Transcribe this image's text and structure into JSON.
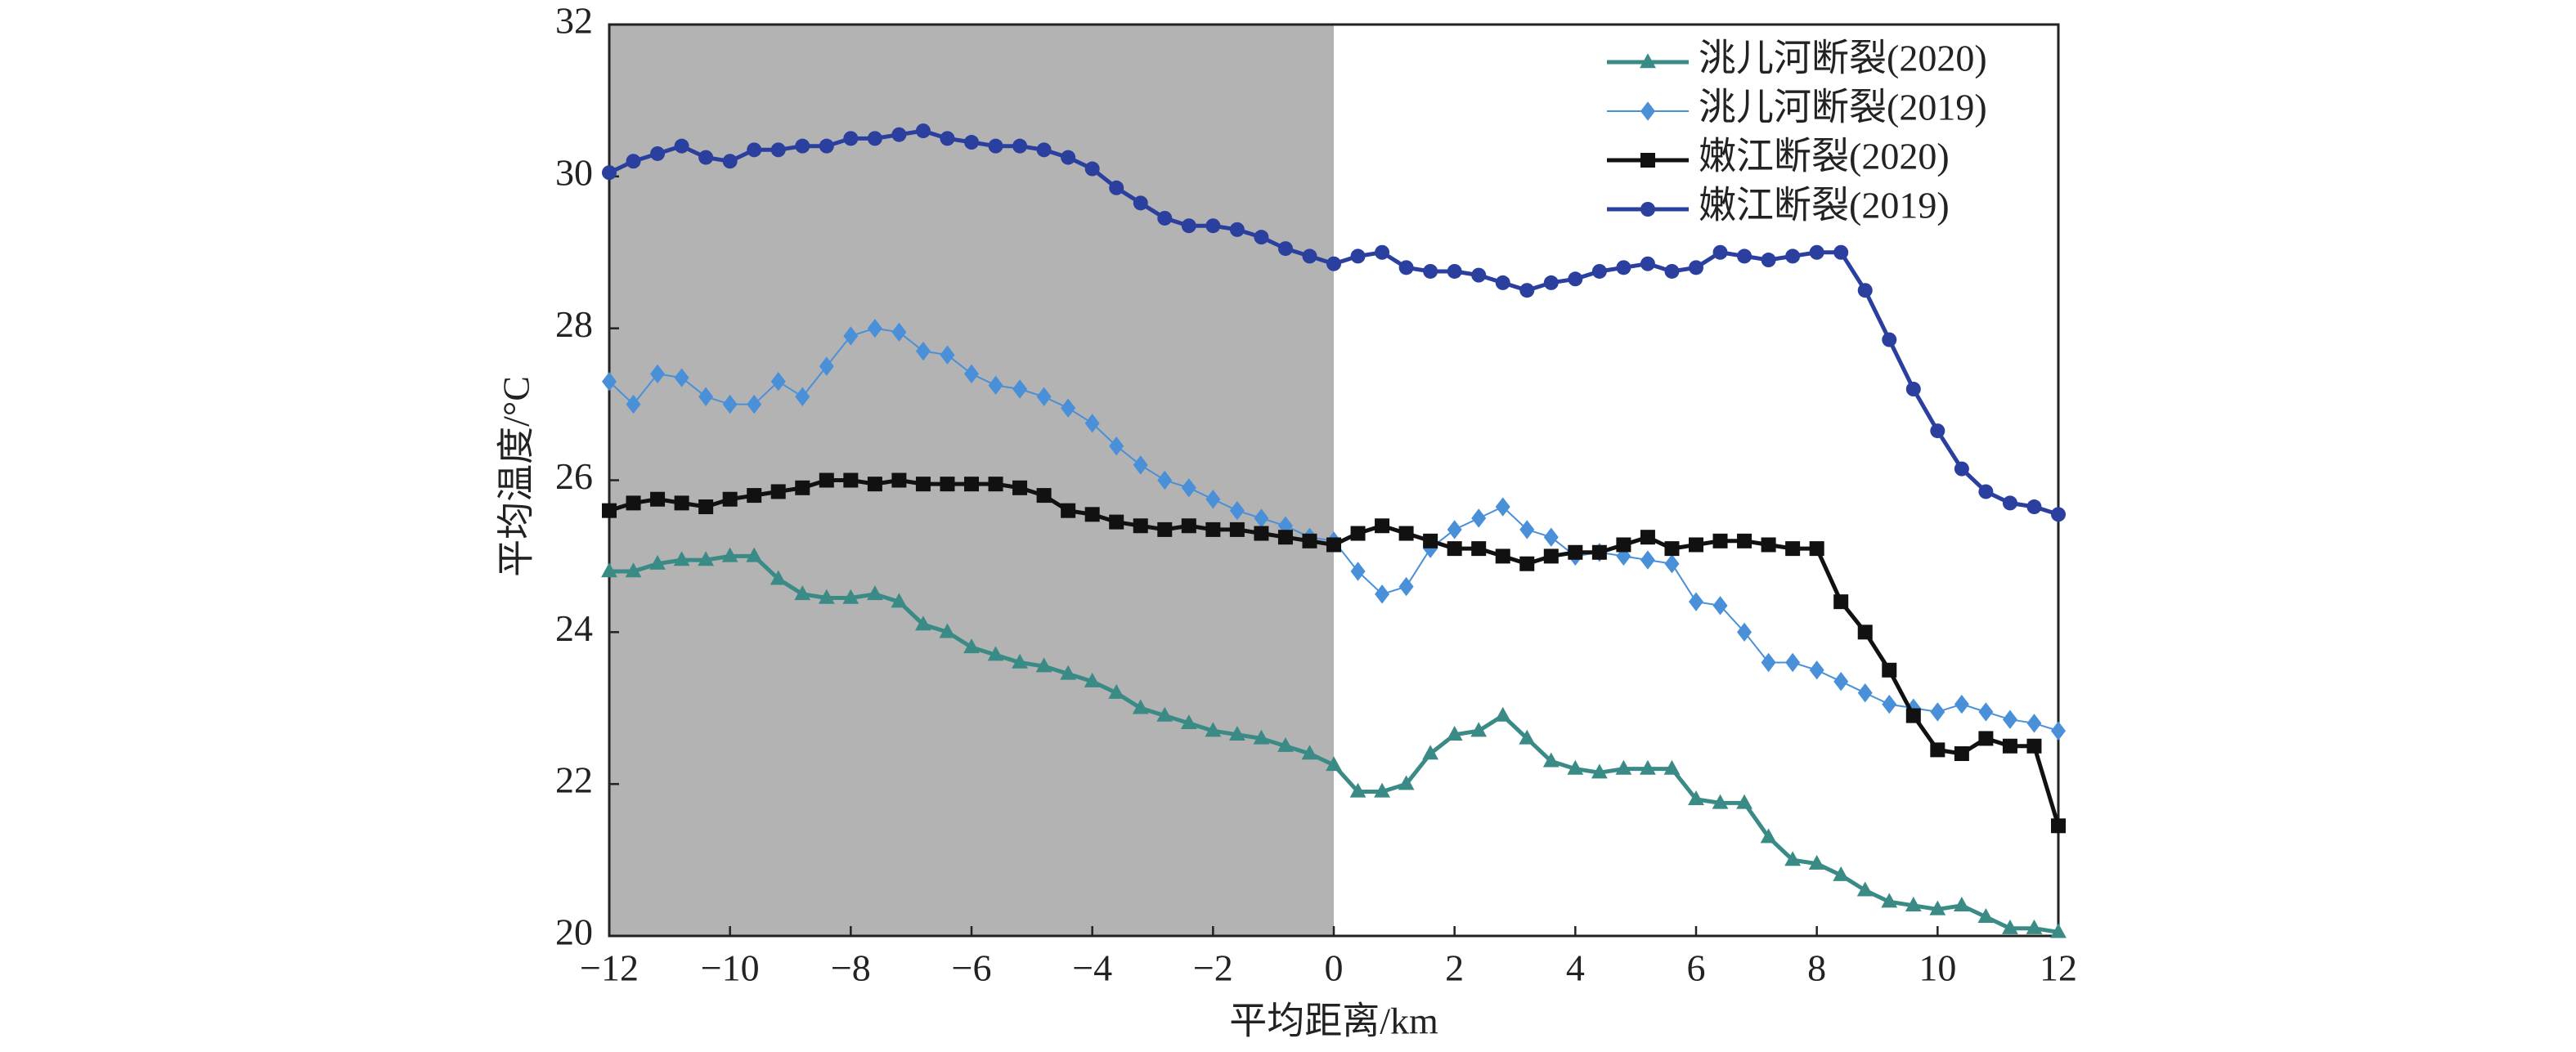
{
  "chart_data": {
    "type": "line",
    "x_label": "平均距离/km",
    "y_label": "平均温度/°C",
    "shaded_region": [
      -12,
      0
    ],
    "shade_color": "#b3b3b3",
    "xlim": [
      -12,
      12
    ],
    "ylim": [
      20,
      32
    ],
    "xticks": [
      {
        "value": -12,
        "label": "−12"
      },
      {
        "value": -10,
        "label": "−10"
      },
      {
        "value": -8,
        "label": "−8"
      },
      {
        "value": -6,
        "label": "−6"
      },
      {
        "value": -4,
        "label": "−4"
      },
      {
        "value": -2,
        "label": "−2"
      },
      0,
      2,
      4,
      6,
      8,
      10,
      12
    ],
    "yticks": [
      20,
      22,
      24,
      26,
      28,
      30,
      32
    ],
    "legend": "upper right",
    "x": [
      -12,
      -11.6,
      -11.2,
      -10.8,
      -10.4,
      -10,
      -9.6,
      -9.2,
      -8.8,
      -8.4,
      -8,
      -7.6,
      -7.2,
      -6.8,
      -6.4,
      -6,
      -5.6,
      -5.2,
      -4.8,
      -4.4,
      -4,
      -3.6,
      -3.2,
      -2.8,
      -2.4,
      -2,
      -1.6,
      -1.2,
      -0.8,
      -0.4,
      0,
      0.4,
      0.8,
      1.2,
      1.6,
      2,
      2.4,
      2.8,
      3.2,
      3.6,
      4,
      4.4,
      4.8,
      5.2,
      5.6,
      6,
      6.4,
      6.8,
      7.2,
      7.6,
      8,
      8.4,
      8.8,
      9.2,
      9.6,
      10,
      10.4,
      10.8,
      11.2,
      11.6,
      12
    ],
    "series": [
      {
        "name": "洮儿河断裂(2020)",
        "color": "#3a8a86",
        "marker": "triangle",
        "line_width": 5,
        "values": [
          24.8,
          24.8,
          24.9,
          24.95,
          24.95,
          25.0,
          25.0,
          24.7,
          24.5,
          24.45,
          24.45,
          24.5,
          24.4,
          24.1,
          24.0,
          23.8,
          23.7,
          23.6,
          23.55,
          23.45,
          23.35,
          23.2,
          23.0,
          22.9,
          22.8,
          22.7,
          22.65,
          22.6,
          22.5,
          22.4,
          22.25,
          21.9,
          21.9,
          22.0,
          22.4,
          22.65,
          22.7,
          22.9,
          22.6,
          22.3,
          22.2,
          22.15,
          22.2,
          22.2,
          22.2,
          21.8,
          21.75,
          21.75,
          21.3,
          21.0,
          20.95,
          20.8,
          20.6,
          20.45,
          20.4,
          20.35,
          20.4,
          20.25,
          20.1,
          20.1,
          20.05
        ]
      },
      {
        "name": "洮儿河断裂(2019)",
        "color": "#4a90d9",
        "marker": "diamond",
        "line_width": 2,
        "values": [
          27.3,
          27.0,
          27.4,
          27.35,
          27.1,
          27.0,
          27.0,
          27.3,
          27.1,
          27.5,
          27.9,
          28.0,
          27.95,
          27.7,
          27.65,
          27.4,
          27.25,
          27.2,
          27.1,
          26.95,
          26.75,
          26.45,
          26.2,
          26.0,
          25.9,
          25.75,
          25.6,
          25.5,
          25.4,
          25.25,
          25.2,
          24.8,
          24.5,
          24.6,
          25.1,
          25.35,
          25.5,
          25.65,
          25.35,
          25.25,
          25.0,
          25.05,
          25.0,
          24.95,
          24.9,
          24.4,
          24.35,
          24.0,
          23.6,
          23.6,
          23.5,
          23.35,
          23.2,
          23.05,
          23.0,
          22.95,
          23.05,
          22.95,
          22.85,
          22.8,
          22.7
        ]
      },
      {
        "name": "嫩江断裂(2020)",
        "color": "#111111",
        "marker": "square",
        "line_width": 5,
        "values": [
          25.6,
          25.7,
          25.75,
          25.7,
          25.65,
          25.75,
          25.8,
          25.85,
          25.9,
          26.0,
          26.0,
          25.95,
          26.0,
          25.95,
          25.95,
          25.95,
          25.95,
          25.9,
          25.8,
          25.6,
          25.55,
          25.45,
          25.4,
          25.35,
          25.4,
          25.35,
          25.35,
          25.3,
          25.25,
          25.2,
          25.15,
          25.3,
          25.4,
          25.3,
          25.2,
          25.1,
          25.1,
          25.0,
          24.9,
          25.0,
          25.05,
          25.05,
          25.15,
          25.25,
          25.1,
          25.15,
          25.2,
          25.2,
          25.15,
          25.1,
          25.1,
          24.4,
          24.0,
          23.5,
          22.9,
          22.45,
          22.4,
          22.6,
          22.5,
          22.5,
          21.45
        ]
      },
      {
        "name": "嫩江断裂(2019)",
        "color": "#2b3f9e",
        "marker": "circle",
        "line_width": 5,
        "values": [
          30.05,
          30.2,
          30.3,
          30.4,
          30.25,
          30.2,
          30.35,
          30.35,
          30.4,
          30.4,
          30.5,
          30.5,
          30.55,
          30.6,
          30.5,
          30.45,
          30.4,
          30.4,
          30.35,
          30.25,
          30.1,
          29.85,
          29.65,
          29.45,
          29.35,
          29.35,
          29.3,
          29.2,
          29.05,
          28.95,
          28.85,
          28.95,
          29.0,
          28.8,
          28.75,
          28.75,
          28.7,
          28.6,
          28.5,
          28.6,
          28.65,
          28.75,
          28.8,
          28.85,
          28.75,
          28.8,
          29.0,
          28.95,
          28.9,
          28.95,
          29.0,
          29.0,
          28.5,
          27.85,
          27.2,
          26.65,
          26.15,
          25.85,
          25.7,
          25.65,
          25.55
        ]
      }
    ]
  }
}
